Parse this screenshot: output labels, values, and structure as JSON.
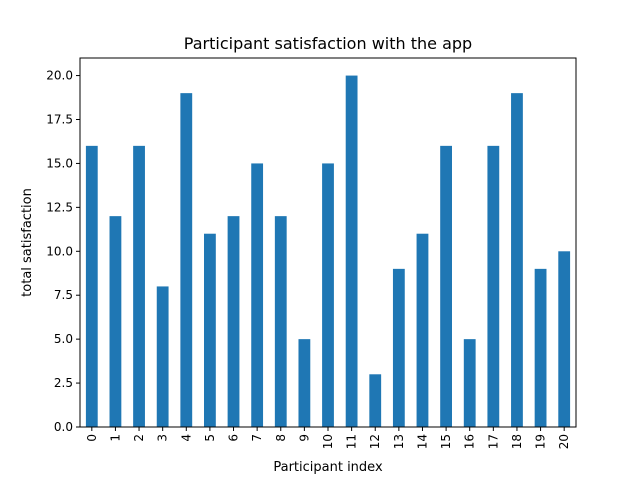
{
  "chart_data": {
    "type": "bar",
    "title": "Participant satisfaction with the app",
    "xlabel": "Participant index",
    "ylabel": "total satisfaction",
    "categories": [
      "0",
      "1",
      "2",
      "3",
      "4",
      "5",
      "6",
      "7",
      "8",
      "9",
      "10",
      "11",
      "12",
      "13",
      "14",
      "15",
      "16",
      "17",
      "18",
      "19",
      "20"
    ],
    "values": [
      16,
      12,
      16,
      8,
      19,
      11,
      12,
      15,
      12,
      5,
      15,
      20,
      3,
      9,
      11,
      16,
      5,
      16,
      19,
      9,
      10
    ],
    "ylim": [
      0,
      21
    ],
    "yticks": [
      "0.0",
      "2.5",
      "5.0",
      "7.5",
      "10.0",
      "12.5",
      "15.0",
      "17.5",
      "20.0"
    ],
    "grid": false,
    "legend": "none",
    "bar_color": "#1f77b4"
  }
}
